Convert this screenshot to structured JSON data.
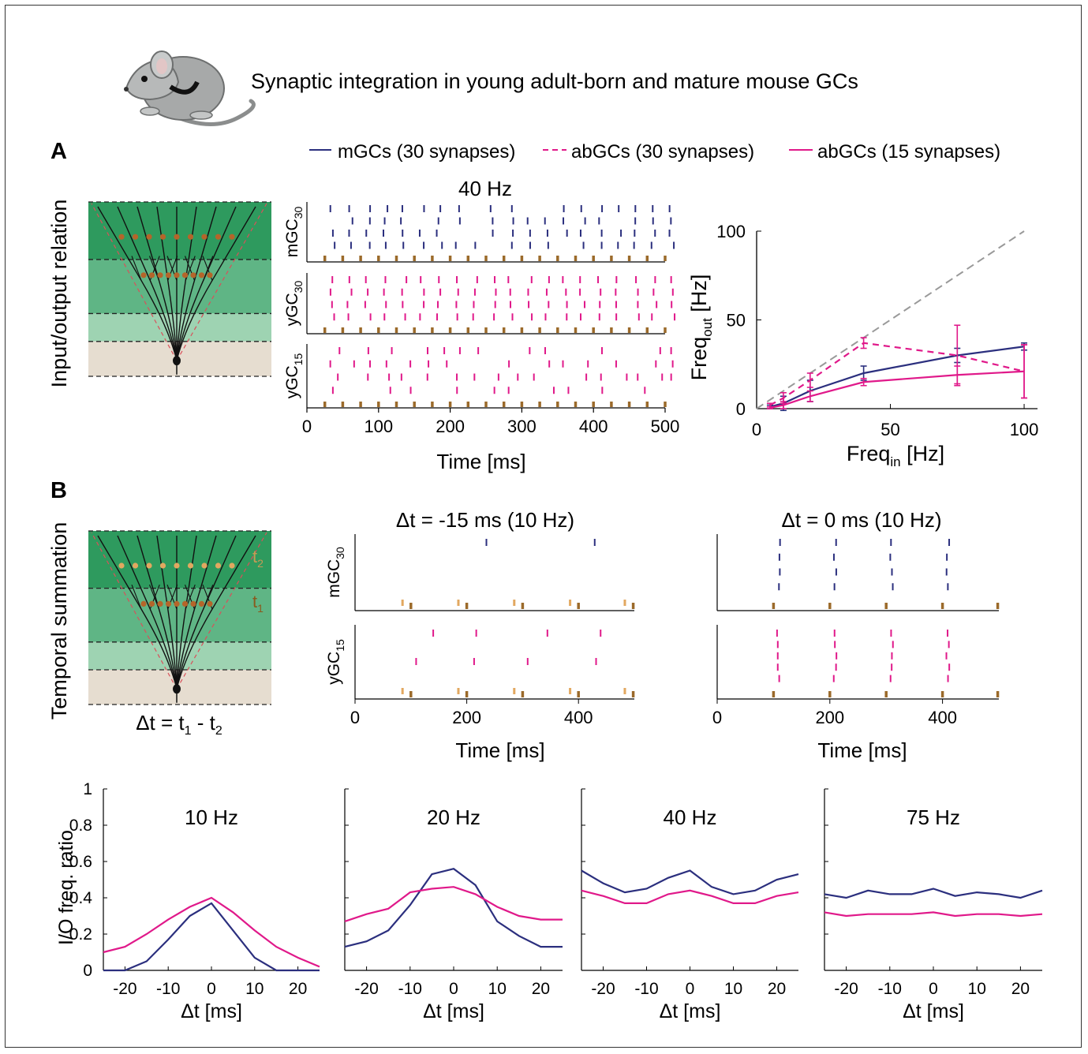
{
  "title": "Synaptic integration in young adult-born and mature mouse GCs",
  "colors": {
    "mGC": "#2b2f7e",
    "abGC": "#e0198a",
    "stim": "#9b6a2a",
    "diag": "#999999",
    "band1": "#2e9a5e",
    "band2": "#5fb585",
    "band3": "#9ed3b2",
    "band4": "#e6ddd0",
    "synA": "#b5652a",
    "synB": "#e2a860",
    "mouse": "#a7a9a9"
  },
  "panelA": {
    "letter": "A",
    "side_label": "Input/output relation",
    "legend": [
      {
        "label": "mGCs (30 synapses)",
        "style": "solid",
        "color": "mGC"
      },
      {
        "label": "abGCs (30 synapses)",
        "style": "dashed",
        "color": "abGC"
      },
      {
        "label": "abGCs (15 synapses)",
        "style": "solid",
        "color": "abGC"
      }
    ],
    "raster_title": "40 Hz",
    "raster_rows": [
      {
        "label": "mGC",
        "sub": "30"
      },
      {
        "label": "yGC",
        "sub": "30"
      },
      {
        "label": "yGC",
        "sub": "15"
      }
    ],
    "raster_xticks": [
      "0",
      "100",
      "200",
      "300",
      "400",
      "500"
    ],
    "raster_xlabel": "Time [ms]",
    "io_ylabel_main": "Freq",
    "io_ylabel_sub": "out",
    "io_ylabel_unit": " [Hz]",
    "io_xlabel_main": "Freq",
    "io_xlabel_sub": "in",
    "io_xlabel_unit": " [Hz]",
    "io_yticks": [
      "0",
      "50",
      "100"
    ],
    "io_xticks": [
      "0",
      "50",
      "100"
    ]
  },
  "panelB": {
    "letter": "B",
    "side_label": "Temporal summation",
    "tree_t2": "t",
    "tree_t2_sub": "2",
    "tree_t1": "t",
    "tree_t1_sub": "1",
    "dt_formula_pre": "Δt = t",
    "dt_formula_sub1": "1",
    "dt_formula_mid": " - t",
    "dt_formula_sub2": "2",
    "raster_titles": [
      "Δt = -15 ms (10 Hz)",
      "Δt = 0 ms (10 Hz)"
    ],
    "raster_rows": [
      {
        "label": "mGC",
        "sub": "30"
      },
      {
        "label": "yGC",
        "sub": "15"
      }
    ],
    "raster_xticks": [
      "0",
      "200",
      "400"
    ],
    "raster_xlabel": "Time [ms]"
  },
  "panelC": {
    "ylabel": "I/O freq. ratio",
    "yticks": [
      "0",
      "0.2",
      "0.4",
      "0.6",
      "0.8",
      "1"
    ],
    "xticks": [
      "-20",
      "-10",
      "0",
      "10",
      "20"
    ],
    "xlabel": "Δt [ms]"
  },
  "chart_data": [
    {
      "type": "line",
      "title": "",
      "xlabel": "Freq_in [Hz]",
      "ylabel": "Freq_out [Hz]",
      "xlim": [
        0,
        105
      ],
      "ylim": [
        0,
        100
      ],
      "reference_line": {
        "style": "dashed",
        "x": [
          0,
          100
        ],
        "y": [
          0,
          100
        ]
      },
      "series": [
        {
          "name": "mGCs (30 synapses)",
          "style": "solid",
          "x": [
            5,
            10,
            20,
            40,
            75,
            100
          ],
          "y": [
            1,
            3,
            10,
            20,
            30,
            35
          ],
          "err": [
            1,
            4,
            6,
            4,
            4,
            2
          ]
        },
        {
          "name": "abGCs (30 synapses)",
          "style": "dashed",
          "x": [
            5,
            10,
            20,
            40,
            75,
            100
          ],
          "y": [
            2,
            6,
            16,
            37,
            30,
            21
          ],
          "err": [
            1,
            3,
            4,
            3,
            17,
            15
          ]
        },
        {
          "name": "abGCs (15 synapses)",
          "style": "solid",
          "x": [
            5,
            10,
            20,
            40,
            75,
            100
          ],
          "y": [
            0.5,
            2,
            7,
            15,
            19,
            21
          ],
          "err": [
            0.5,
            2,
            3,
            2,
            5,
            15
          ]
        }
      ]
    },
    {
      "type": "line",
      "title": "10 Hz",
      "x": [
        -25,
        -20,
        -15,
        -10,
        -5,
        0,
        5,
        10,
        15,
        20,
        25
      ],
      "ylim": [
        0,
        1
      ],
      "xlim": [
        -25,
        25
      ],
      "series": [
        {
          "name": "mGCs (30 synapses)",
          "values": [
            0,
            0,
            0.05,
            0.17,
            0.3,
            0.37,
            0.22,
            0.07,
            0,
            0,
            0
          ]
        },
        {
          "name": "abGCs (15 synapses)",
          "values": [
            0.1,
            0.13,
            0.2,
            0.28,
            0.35,
            0.4,
            0.32,
            0.22,
            0.13,
            0.07,
            0.02
          ]
        }
      ]
    },
    {
      "type": "line",
      "title": "20 Hz",
      "x": [
        -25,
        -20,
        -15,
        -10,
        -5,
        0,
        5,
        10,
        15,
        20,
        25
      ],
      "ylim": [
        0,
        1
      ],
      "xlim": [
        -25,
        25
      ],
      "series": [
        {
          "name": "mGCs (30 synapses)",
          "values": [
            0.13,
            0.16,
            0.22,
            0.36,
            0.53,
            0.56,
            0.47,
            0.27,
            0.19,
            0.13,
            0.13
          ]
        },
        {
          "name": "abGCs (15 synapses)",
          "values": [
            0.27,
            0.31,
            0.34,
            0.43,
            0.45,
            0.46,
            0.42,
            0.35,
            0.3,
            0.28,
            0.28
          ]
        }
      ]
    },
    {
      "type": "line",
      "title": "40 Hz",
      "x": [
        -25,
        -20,
        -15,
        -10,
        -5,
        0,
        5,
        10,
        15,
        20,
        25
      ],
      "ylim": [
        0,
        1
      ],
      "xlim": [
        -25,
        25
      ],
      "series": [
        {
          "name": "mGCs (30 synapses)",
          "values": [
            0.55,
            0.48,
            0.43,
            0.45,
            0.51,
            0.55,
            0.46,
            0.42,
            0.44,
            0.5,
            0.53
          ]
        },
        {
          "name": "abGCs (15 synapses)",
          "values": [
            0.44,
            0.41,
            0.37,
            0.37,
            0.42,
            0.44,
            0.41,
            0.37,
            0.37,
            0.41,
            0.43
          ]
        }
      ]
    },
    {
      "type": "line",
      "title": "75 Hz",
      "x": [
        -25,
        -20,
        -15,
        -10,
        -5,
        0,
        5,
        10,
        15,
        20,
        25
      ],
      "ylim": [
        0,
        1
      ],
      "xlim": [
        -25,
        25
      ],
      "series": [
        {
          "name": "mGCs (30 synapses)",
          "values": [
            0.42,
            0.4,
            0.44,
            0.42,
            0.42,
            0.45,
            0.41,
            0.43,
            0.42,
            0.4,
            0.44
          ]
        },
        {
          "name": "abGCs (15 synapses)",
          "values": [
            0.32,
            0.3,
            0.31,
            0.31,
            0.31,
            0.32,
            0.3,
            0.31,
            0.31,
            0.3,
            0.31
          ]
        }
      ]
    }
  ]
}
